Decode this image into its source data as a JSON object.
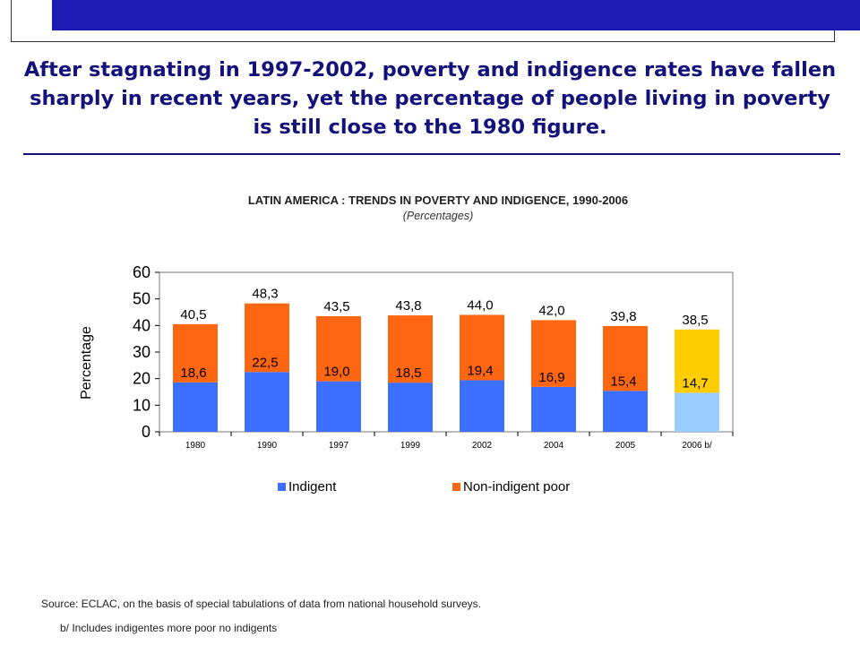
{
  "header": {
    "headline": "After stagnating in 1997-2002, poverty and indigence rates have fallen sharply in recent years, yet the percentage of people living in poverty is still close to the 1980 figure."
  },
  "chart_data": {
    "type": "bar",
    "stacked": true,
    "title": "LATIN AMERICA : TRENDS IN POVERTY AND INDIGENCE, 1990-2006",
    "subtitle": "(Percentages)",
    "xlabel": "",
    "ylabel": "Percentage",
    "ylim": [
      0,
      60
    ],
    "yticks": [
      0,
      10,
      20,
      30,
      40,
      50,
      60
    ],
    "categories": [
      "1980",
      "1990",
      "1997",
      "1999",
      "2002",
      "2004",
      "2005",
      "2006 b/"
    ],
    "series": [
      {
        "name": "Indigent",
        "color": "#3d6fff",
        "highlight_color": "#99ccff",
        "values": [
          18.6,
          22.5,
          19.0,
          18.5,
          19.4,
          16.9,
          15.4,
          14.7
        ],
        "labels": [
          "18,6",
          "22,5",
          "19,0",
          "18,5",
          "19,4",
          "16,9",
          "15,4",
          "14,7"
        ]
      },
      {
        "name": "Non-indigent poor",
        "color": "#ff6611",
        "highlight_color": "#ffcc00",
        "values": [
          21.9,
          25.8,
          24.5,
          25.3,
          24.6,
          25.1,
          24.4,
          23.8
        ]
      }
    ],
    "totals": [
      40.5,
      48.3,
      43.5,
      43.8,
      44.0,
      42.0,
      39.8,
      38.5
    ],
    "total_labels": [
      "40,5",
      "48,3",
      "43,5",
      "43,8",
      "44,0",
      "42,0",
      "39,8",
      "38,5"
    ],
    "highlight_category": "2006 b/",
    "grid": false,
    "legend_position": "bottom"
  },
  "footer": {
    "source": "Source: ECLAC, on the basis of special tabulations of data from national household surveys.",
    "footnote": "b/ Includes indigentes more poor  no indigents"
  }
}
